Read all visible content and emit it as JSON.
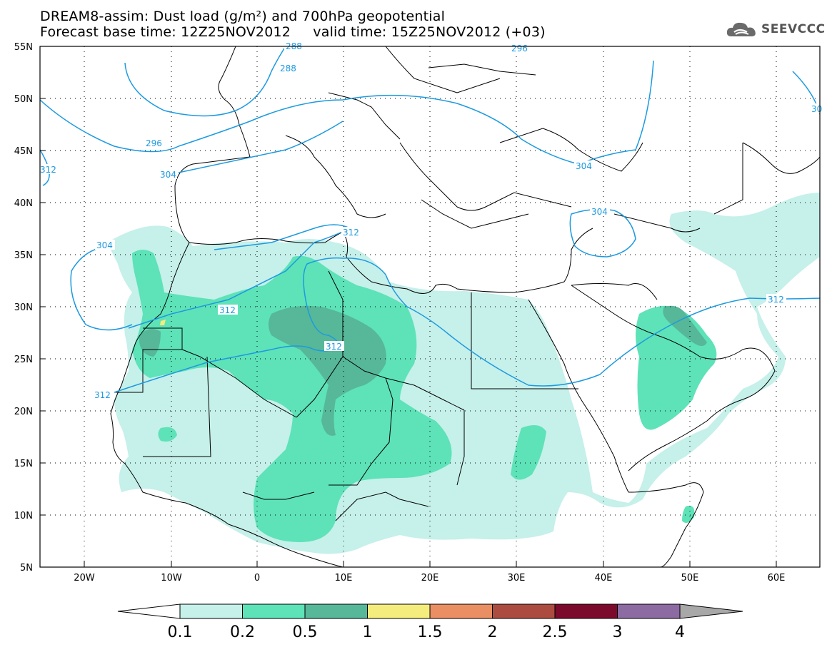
{
  "title": {
    "line1": "DREAM8-assim: Dust load (g/m²) and 700hPa geopotential",
    "line2": "Forecast base time: 12Z25NOV2012     valid time: 15Z25NOV2012 (+03)"
  },
  "logo": {
    "text": "SEEVCCC",
    "icon": "cloud-logo-icon"
  },
  "map": {
    "lon_range": [
      -25,
      65
    ],
    "lat_range": [
      5,
      55
    ],
    "lon_ticks": [
      "20W",
      "10W",
      "0",
      "10E",
      "20E",
      "30E",
      "40E",
      "50E",
      "60E"
    ],
    "lat_ticks": [
      "55N",
      "50N",
      "45N",
      "40N",
      "35N",
      "30N",
      "25N",
      "20N",
      "15N",
      "10N",
      "5N"
    ],
    "contour_labels": [
      "288",
      "296",
      "304",
      "312",
      "304",
      "312",
      "312",
      "312",
      "304",
      "312",
      "288",
      "296",
      "312",
      "304",
      "30"
    ],
    "contour_color": "#1c9ae0"
  },
  "colorbar": {
    "labels": [
      "0.1",
      "0.2",
      "0.5",
      "1",
      "1.5",
      "2",
      "2.5",
      "3",
      "4"
    ],
    "colors": [
      "#c6f0ea",
      "#5ee2b8",
      "#56b898",
      "#f4ec7c",
      "#ea8e64",
      "#ac4c40",
      "#7c0a2c",
      "#8c6aa2"
    ],
    "left_arrow_color": "#ffffff",
    "right_arrow_color": "#a8a8a8"
  }
}
